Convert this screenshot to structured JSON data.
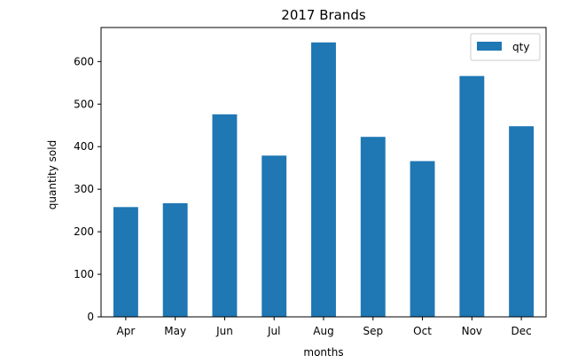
{
  "chart_data": {
    "type": "bar",
    "title": "2017 Brands",
    "xlabel": "months",
    "ylabel": "quantity sold",
    "categories": [
      "Apr",
      "May",
      "Jun",
      "Jul",
      "Aug",
      "Sep",
      "Oct",
      "Nov",
      "Dec"
    ],
    "series": [
      {
        "name": "qty",
        "values": [
          258,
          267,
          476,
          379,
          645,
          423,
          366,
          566,
          448
        ],
        "color": "#1f77b4"
      }
    ],
    "ylim": [
      0,
      680
    ],
    "yticks": [
      0,
      100,
      200,
      300,
      400,
      500,
      600
    ],
    "grid": false,
    "legend_position": "top-right"
  }
}
